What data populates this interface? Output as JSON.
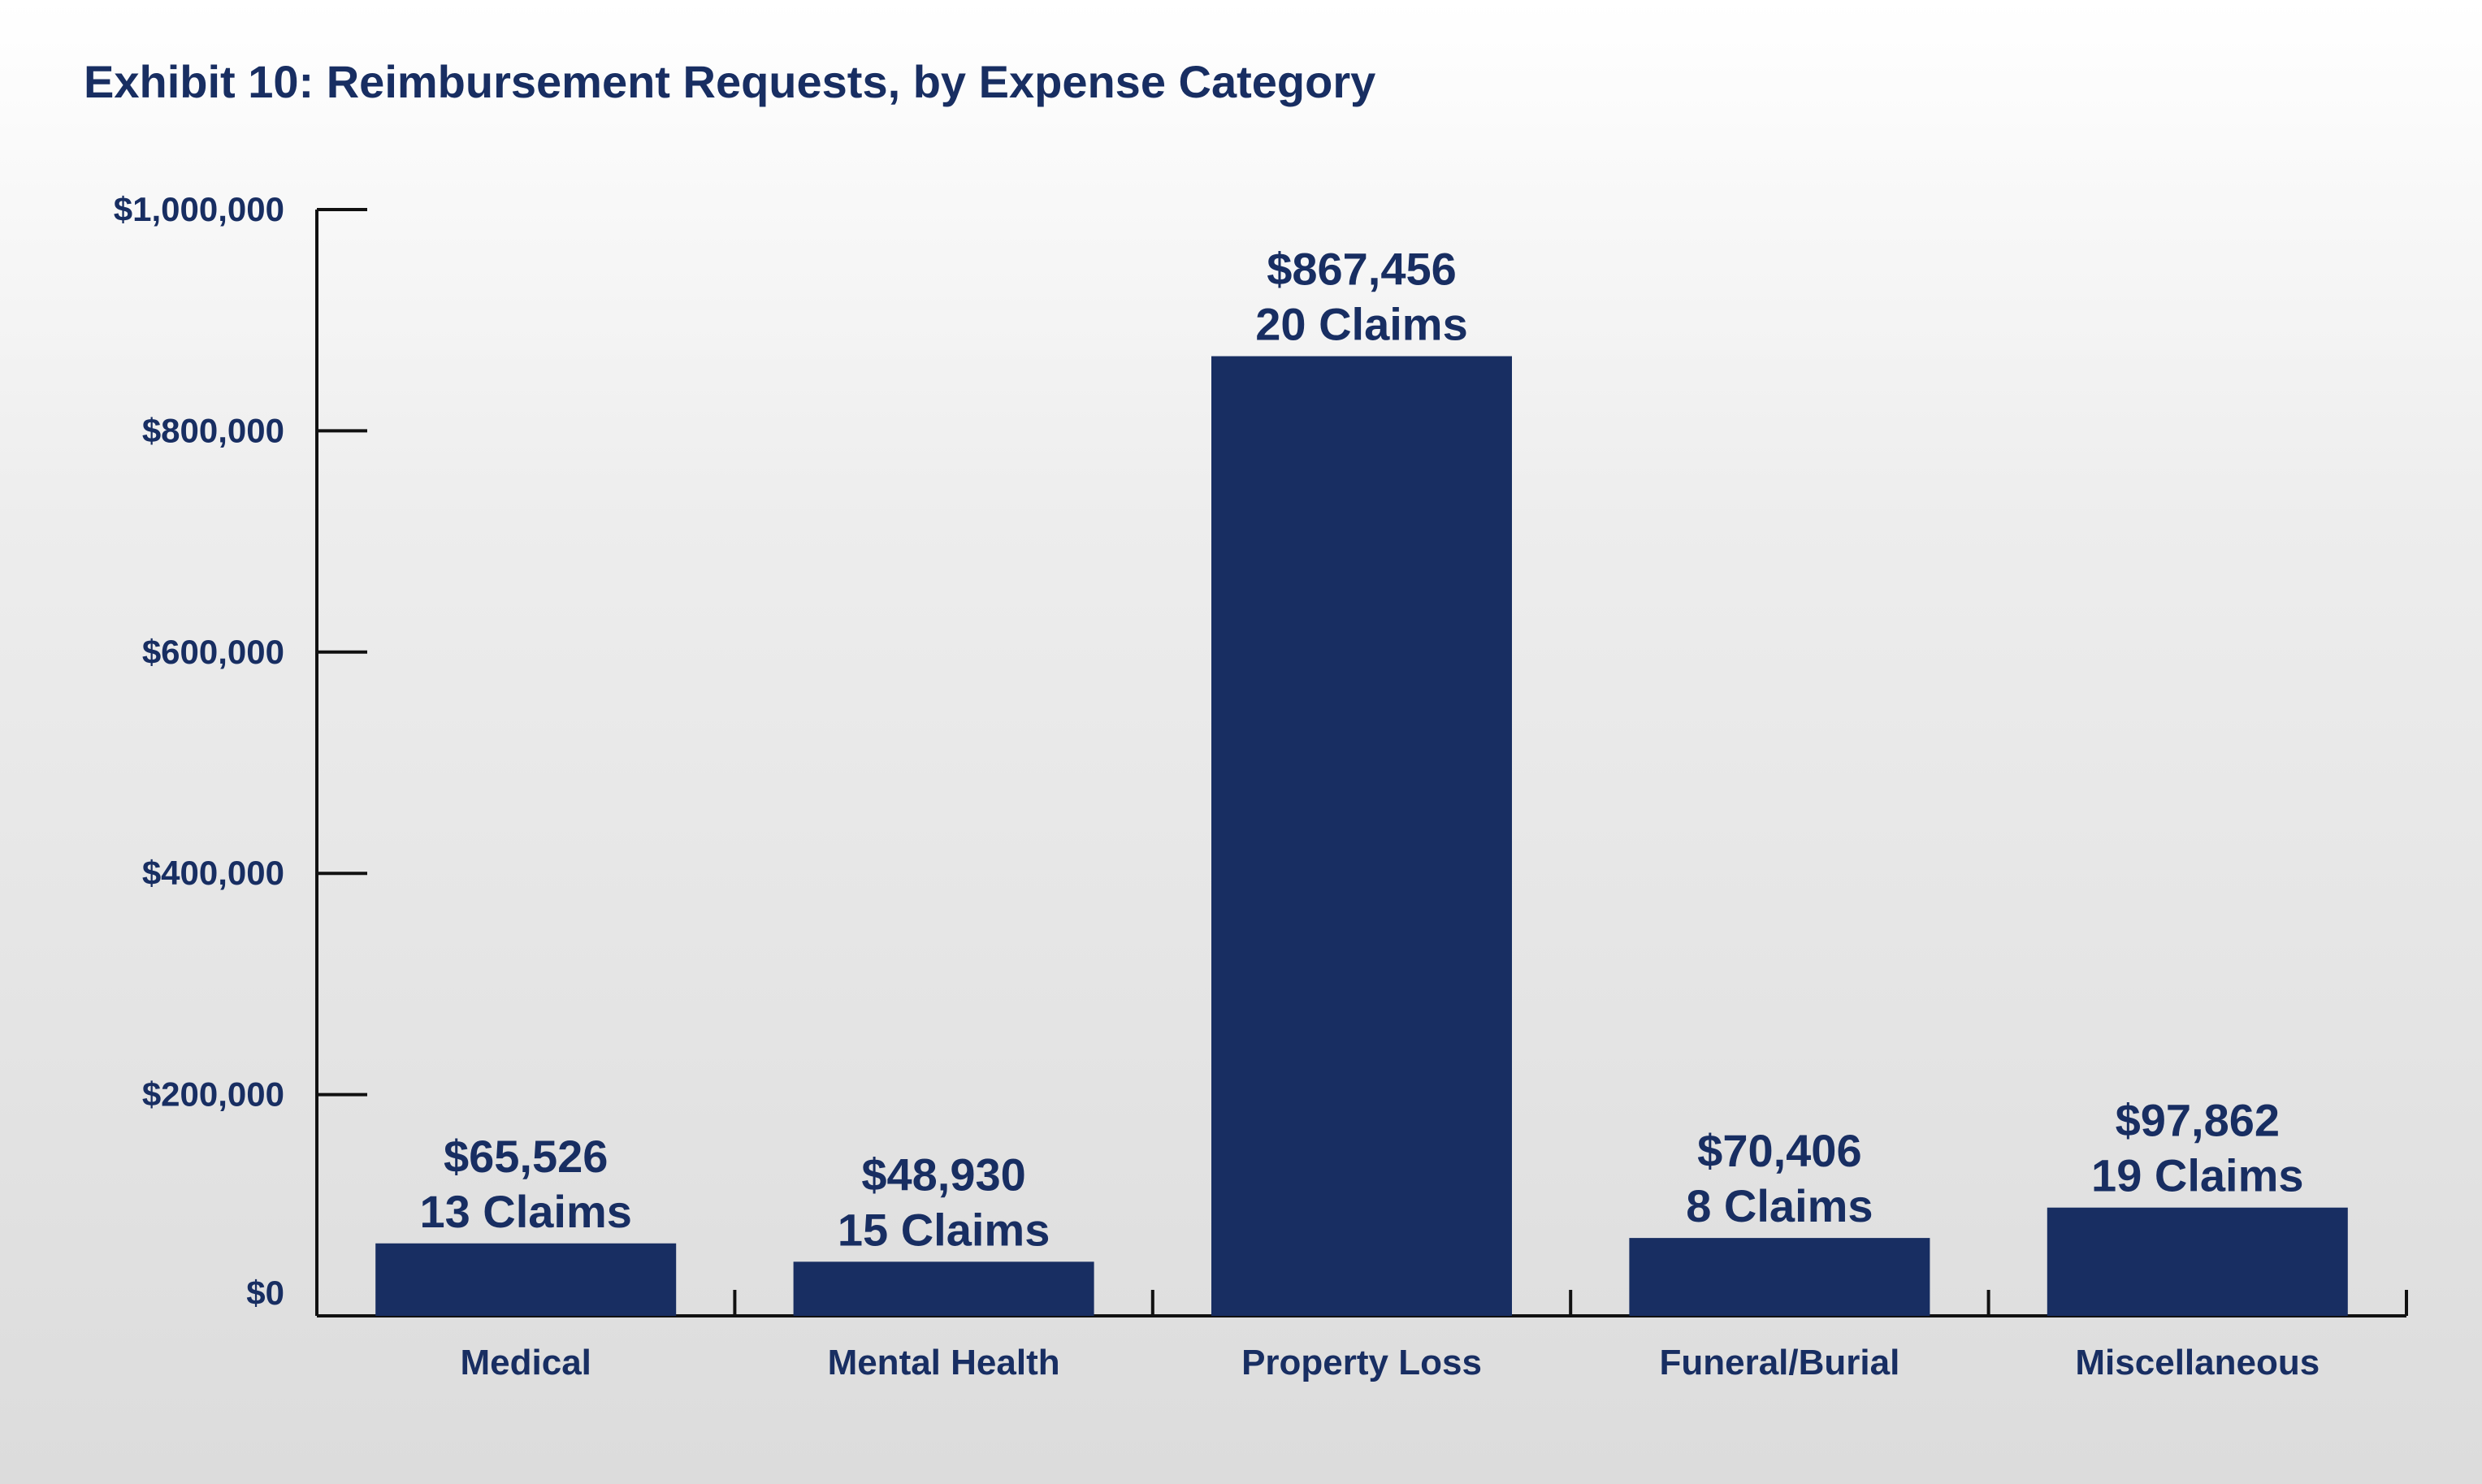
{
  "chart_data": {
    "type": "bar",
    "title": "Exhibit 10: Reimbursement Requests, by Expense Category",
    "categories": [
      "Medical",
      "Mental Health",
      "Property Loss",
      "Funeral/Burial",
      "Miscellaneous"
    ],
    "values": [
      65526,
      48930,
      867456,
      70406,
      97862
    ],
    "value_labels": [
      "$65,526",
      "$48,930",
      "$867,456",
      "$70,406",
      "$97,862"
    ],
    "claim_labels": [
      "13 Claims",
      "15 Claims",
      "20 Claims",
      "8 Claims",
      "19 Claims"
    ],
    "ylim": [
      0,
      1000000
    ],
    "yticks": [
      0,
      200000,
      400000,
      600000,
      800000,
      1000000
    ],
    "ytick_labels": [
      "$0",
      "$200,000",
      "$400,000",
      "$600,000",
      "$800,000",
      "$1,000,000"
    ],
    "grid": false,
    "bar_color": "#182e62",
    "text_color": "#182e62"
  }
}
